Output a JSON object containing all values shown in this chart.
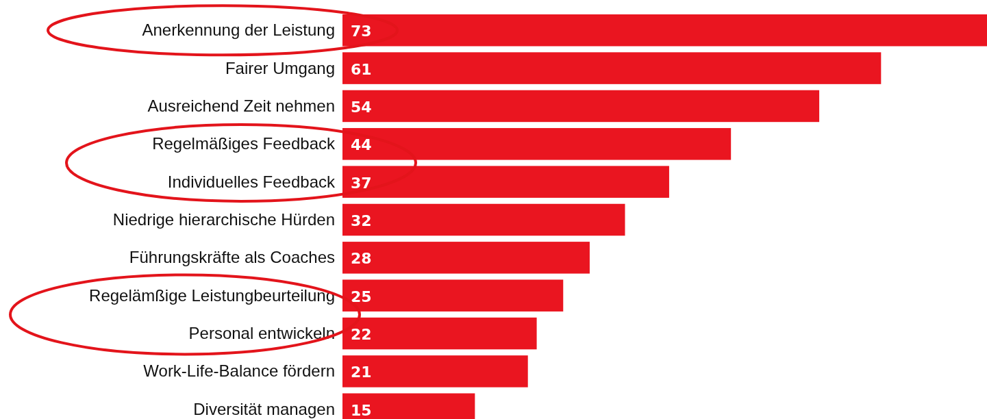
{
  "chart_data": {
    "type": "bar",
    "orientation": "horizontal",
    "categories": [
      "Anerkennung der Leistung",
      "Fairer Umgang",
      "Ausreichend Zeit nehmen",
      "Regelmäßiges Feedback",
      "Individuelles Feedback",
      "Niedrige hierarchische Hürden",
      "Führungskräfte als Coaches",
      "Regelämßige Leistungbeurteilung",
      "Personal entwickeln",
      "Work-Life-Balance fördern",
      "Diversität managen"
    ],
    "values": [
      73,
      61,
      54,
      44,
      37,
      32,
      28,
      25,
      22,
      21,
      15
    ],
    "color": "#ea1520",
    "data_labels": true
  }
}
